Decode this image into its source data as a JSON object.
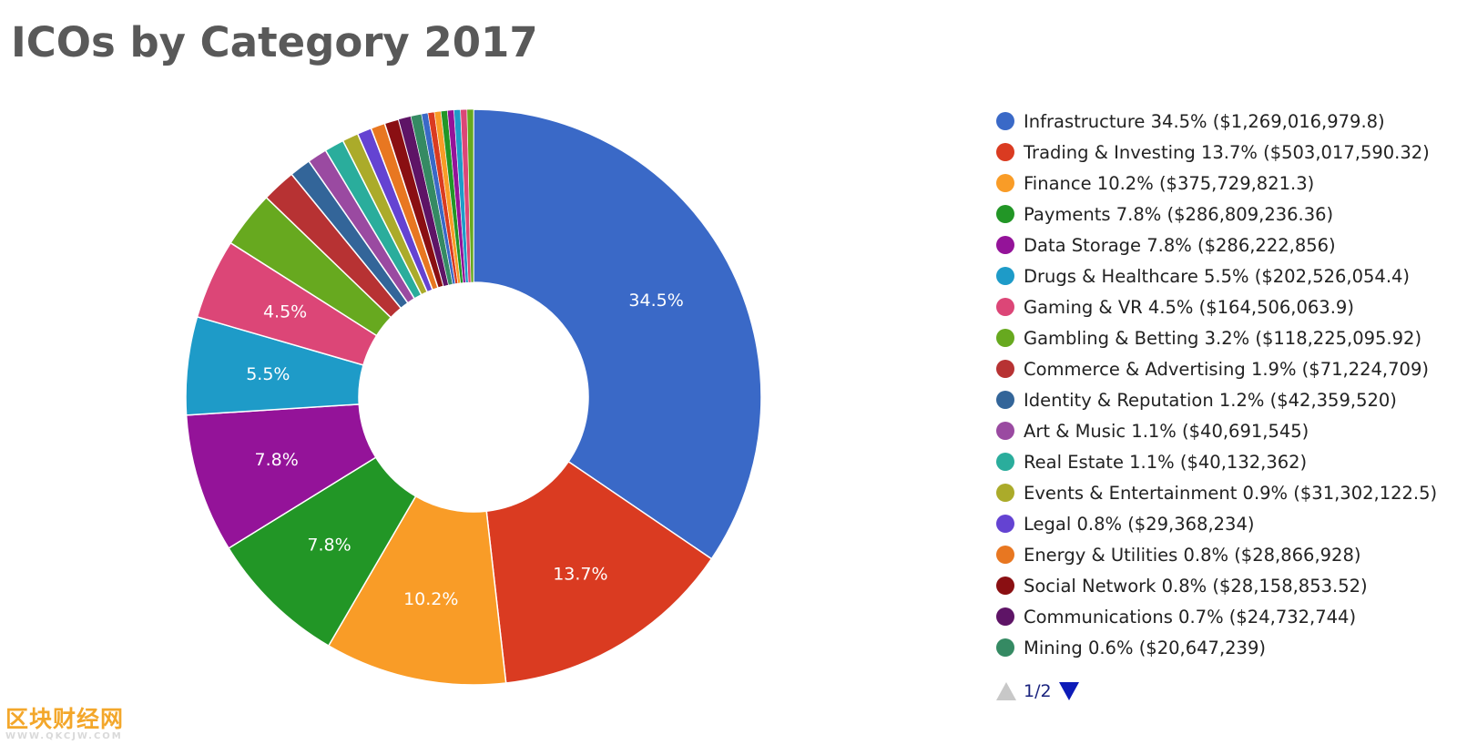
{
  "chart_data": {
    "type": "pie",
    "title": "ICOs by Category 2017",
    "donut": true,
    "legend_placement": "right",
    "slices": [
      {
        "label": "Infrastructure",
        "percent": 34.5,
        "value_label": "$1,269,016,979.8",
        "value": 1269016979.8,
        "color": "#3a69c7",
        "show_label": true
      },
      {
        "label": "Trading & Investing",
        "percent": 13.7,
        "value_label": "$503,017,590.32",
        "value": 503017590.32,
        "color": "#da3b21",
        "show_label": true
      },
      {
        "label": "Finance",
        "percent": 10.2,
        "value_label": "$375,729,821.3",
        "value": 375729821.3,
        "color": "#f99c27",
        "show_label": true
      },
      {
        "label": "Payments",
        "percent": 7.8,
        "value_label": "$286,809,236.36",
        "value": 286809236.36,
        "color": "#229626",
        "show_label": true
      },
      {
        "label": "Data Storage",
        "percent": 7.8,
        "value_label": "$286,222,856",
        "value": 286222856,
        "color": "#941399",
        "show_label": true
      },
      {
        "label": "Drugs & Healthcare",
        "percent": 5.5,
        "value_label": "$202,526,054.4",
        "value": 202526054.4,
        "color": "#1e9bc8",
        "show_label": true
      },
      {
        "label": "Gaming & VR",
        "percent": 4.5,
        "value_label": "$164,506,063.9",
        "value": 164506063.9,
        "color": "#dc4677",
        "show_label": true
      },
      {
        "label": "Gambling & Betting",
        "percent": 3.2,
        "value_label": "$118,225,095.92",
        "value": 118225095.92,
        "color": "#67a91f",
        "show_label": false
      },
      {
        "label": "Commerce & Advertising",
        "percent": 1.9,
        "value_label": "$71,224,709",
        "value": 71224709,
        "color": "#b73233",
        "show_label": false
      },
      {
        "label": "Identity & Reputation",
        "percent": 1.2,
        "value_label": "$42,359,520",
        "value": 42359520,
        "color": "#336599",
        "show_label": false
      },
      {
        "label": "Art & Music",
        "percent": 1.1,
        "value_label": "$40,691,545",
        "value": 40691545,
        "color": "#9a4aa1",
        "show_label": false
      },
      {
        "label": "Real Estate",
        "percent": 1.1,
        "value_label": "$40,132,362",
        "value": 40132362,
        "color": "#2aad9c",
        "show_label": false
      },
      {
        "label": "Events & Entertainment",
        "percent": 0.9,
        "value_label": "$31,302,122.5",
        "value": 31302122.5,
        "color": "#abab2a",
        "show_label": false
      },
      {
        "label": "Legal",
        "percent": 0.8,
        "value_label": "$29,368,234",
        "value": 29368234,
        "color": "#6443d2",
        "show_label": false
      },
      {
        "label": "Energy & Utilities",
        "percent": 0.8,
        "value_label": "$28,866,928",
        "value": 28866928,
        "color": "#e87721",
        "show_label": false
      },
      {
        "label": "Social Network",
        "percent": 0.8,
        "value_label": "$28,158,853.52",
        "value": 28158853.52,
        "color": "#8a0f12",
        "show_label": false
      },
      {
        "label": "Communications",
        "percent": 0.7,
        "value_label": "$24,732,744",
        "value": 24732744,
        "color": "#5e1466",
        "show_label": false
      },
      {
        "label": "Mining",
        "percent": 0.6,
        "value_label": "$20,647,239",
        "value": 20647239,
        "color": "#358a63",
        "show_label": false
      }
    ],
    "tail_slice_colors": [
      "#3a69c7",
      "#da3b21",
      "#f99c27",
      "#229626",
      "#941399",
      "#1e9bc8",
      "#dc4677",
      "#67a91f"
    ]
  },
  "pager": {
    "text": "1/2"
  },
  "watermark": {
    "main": "区块财经网",
    "sub": "WWW.QKCJW.COM"
  }
}
